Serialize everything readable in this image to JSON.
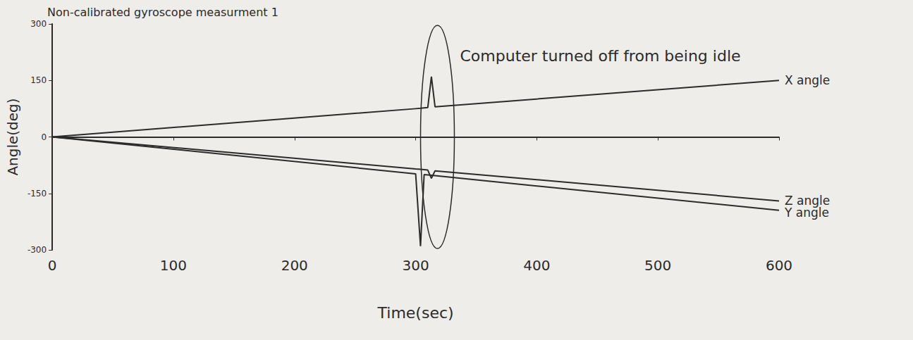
{
  "chart_data": {
    "type": "line",
    "title": "Non-calibrated gyroscope measurment 1",
    "x_label": "Time(sec)",
    "y_label": "Angle(deg)",
    "x": [
      0,
      300,
      304,
      307,
      310,
      313,
      316,
      600
    ],
    "series": [
      {
        "name": "X angle",
        "color": "#2b2b2b",
        "values": [
          0,
          75,
          76,
          77,
          78,
          160,
          80,
          150
        ]
      },
      {
        "name": "Z angle",
        "color": "#2b2b2b",
        "values": [
          0,
          -85,
          -86,
          -87,
          -88,
          -110,
          -90,
          -170
        ]
      },
      {
        "name": "Y angle",
        "color": "#2b2b2b",
        "values": [
          0,
          -98,
          -290,
          -100,
          -101,
          -102,
          -103,
          -195
        ]
      }
    ],
    "xlim": [
      0,
      600
    ],
    "xticks": [
      0,
      100,
      200,
      300,
      400,
      500,
      600
    ],
    "ylim": [
      -300,
      300
    ],
    "yticks": [
      -300,
      -150,
      0,
      150,
      300
    ],
    "grid": false,
    "annotations": [
      {
        "text": "Computer turned off from being idle",
        "x": 318,
        "y": 215
      }
    ]
  }
}
